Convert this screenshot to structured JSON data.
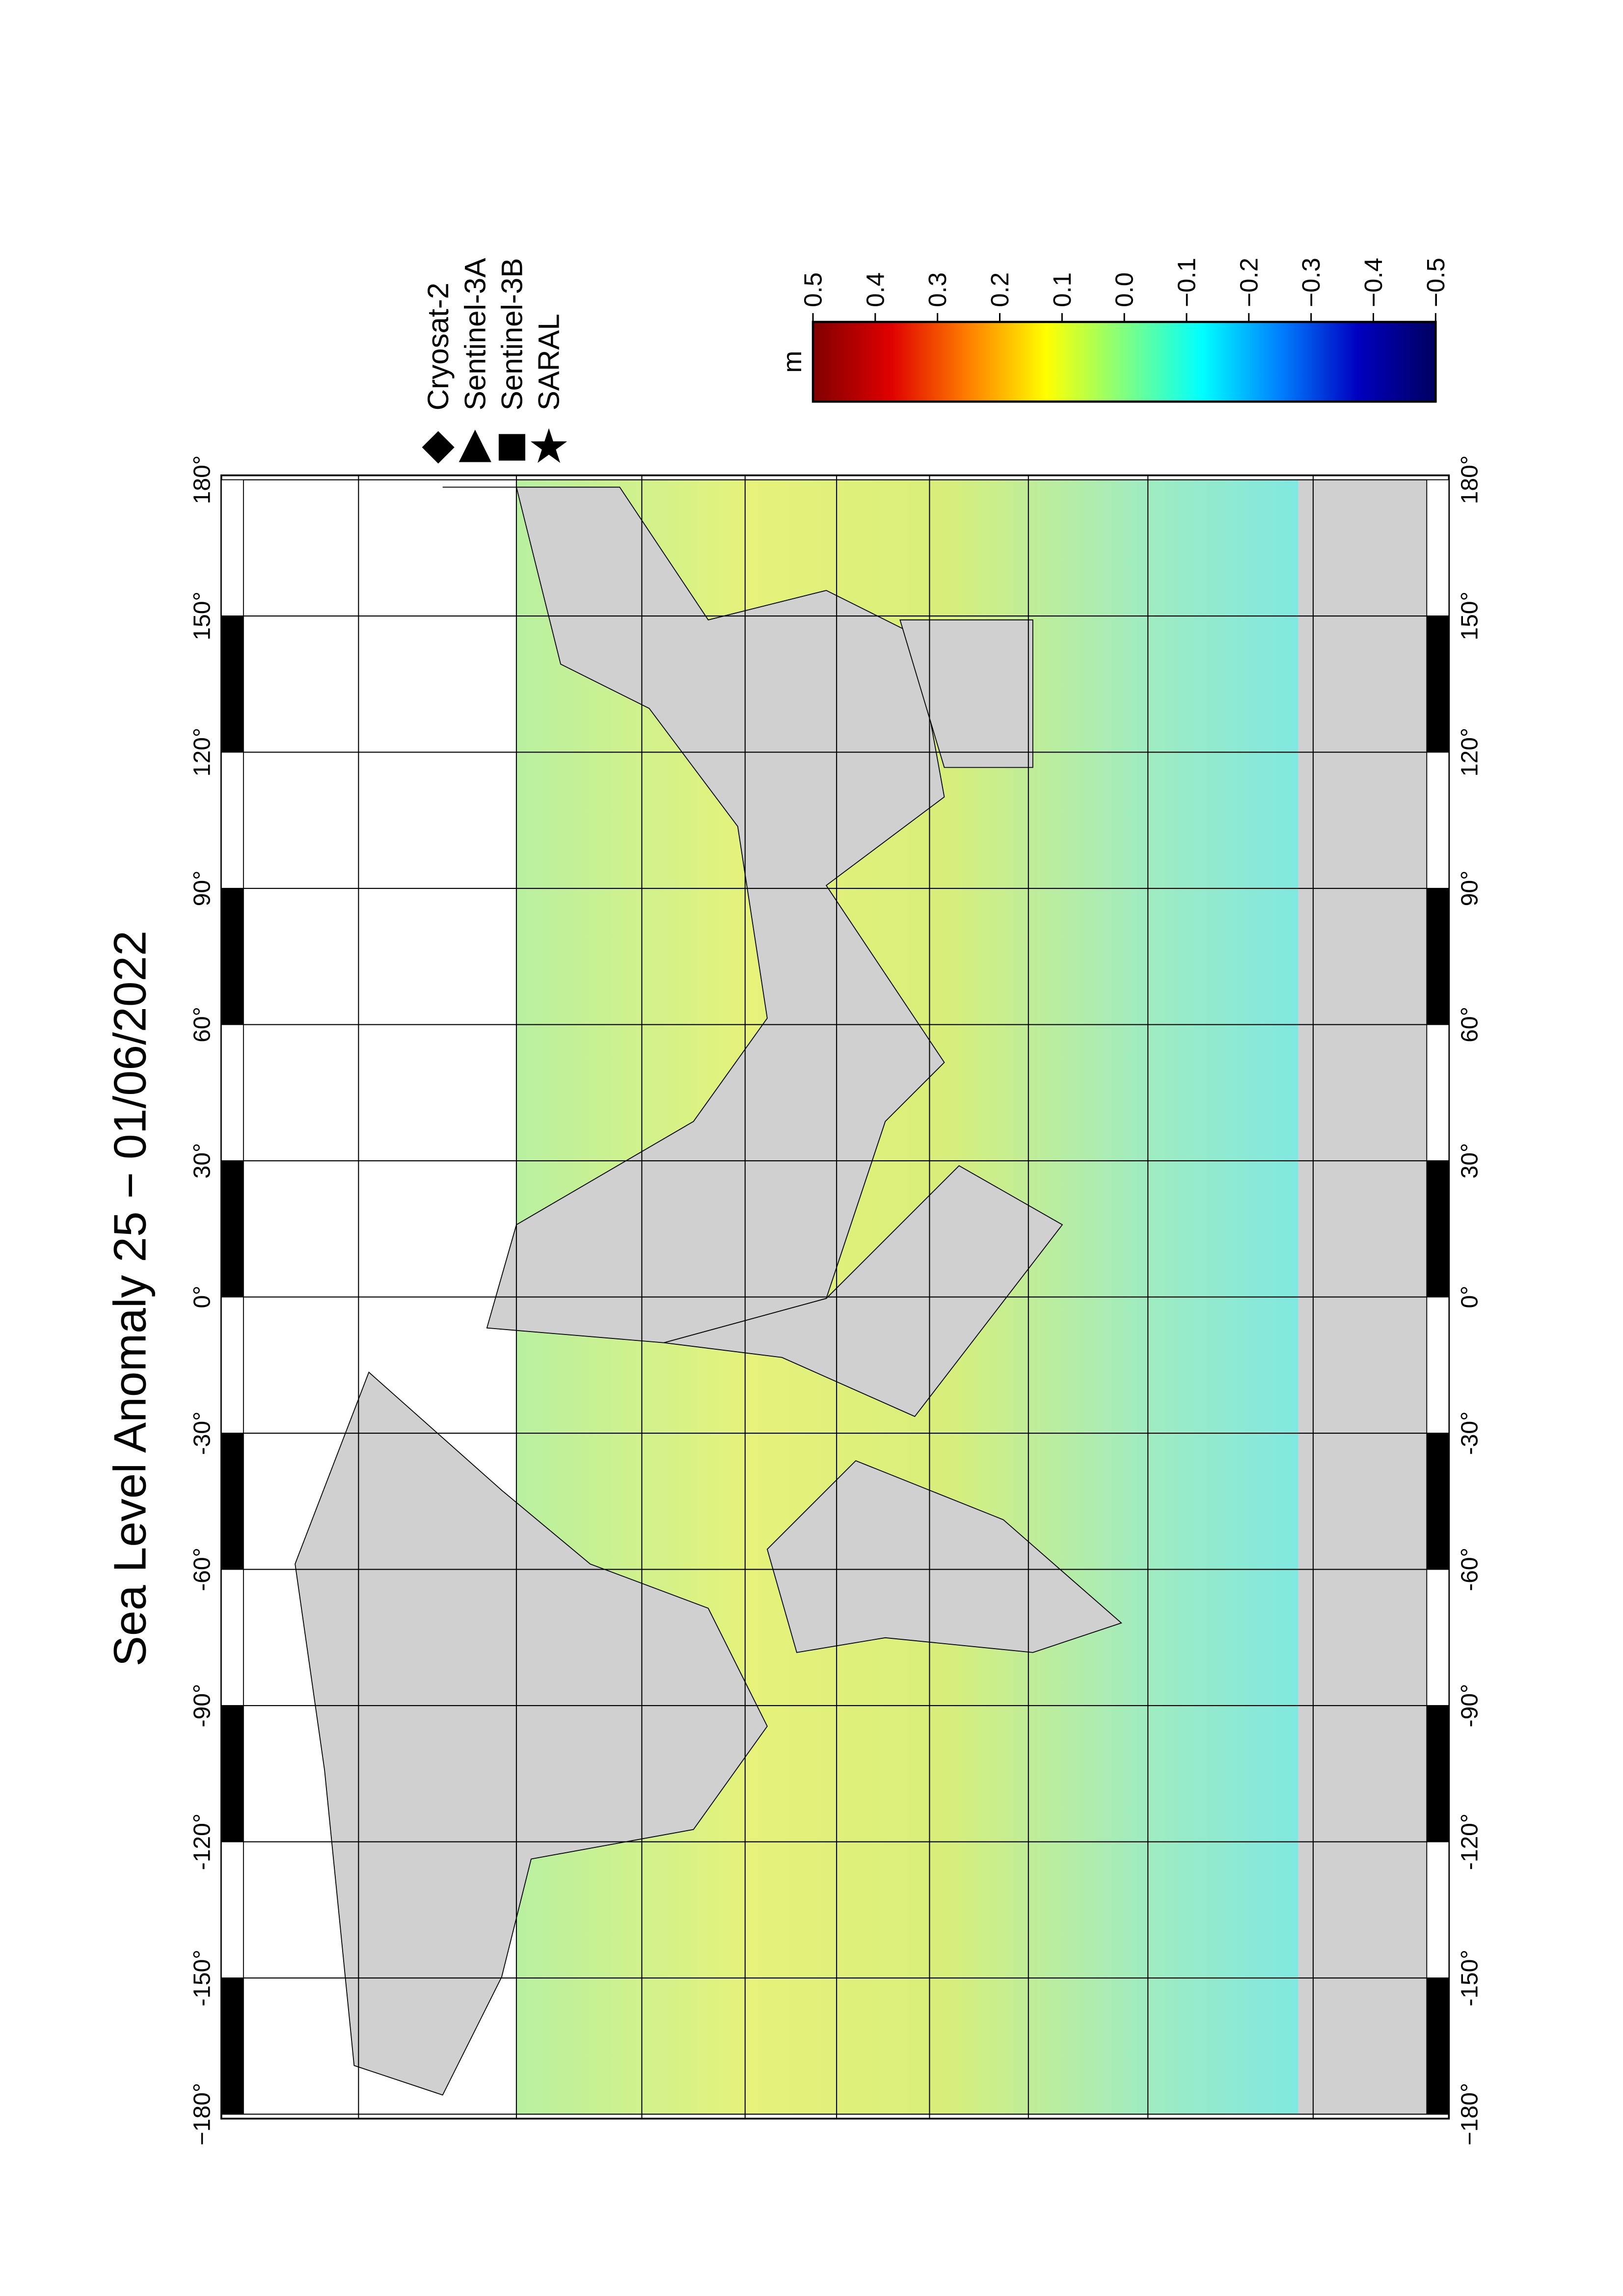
{
  "chart_data": {
    "type": "map",
    "title": "Sea Level Anomaly 25 − 01/06/2022",
    "xlim": [
      180,
      -180
    ],
    "xticks": [
      {
        "value": 180,
        "label": "180°"
      },
      {
        "value": 150,
        "label": "150°"
      },
      {
        "value": 120,
        "label": "120°"
      },
      {
        "value": 90,
        "label": "90°"
      },
      {
        "value": 60,
        "label": "60°"
      },
      {
        "value": 30,
        "label": "30°"
      },
      {
        "value": 0,
        "label": "0°"
      },
      {
        "value": -30,
        "label": "-30°"
      },
      {
        "value": -60,
        "label": "-60°"
      },
      {
        "value": -90,
        "label": "-90°"
      },
      {
        "value": -120,
        "label": "-120°"
      },
      {
        "value": -150,
        "label": "-150°"
      },
      {
        "value": -180,
        "label": "−180°"
      }
    ],
    "grid": true,
    "legend": [
      {
        "name": "Cryosat-2",
        "marker": "diamond"
      },
      {
        "name": "Sentinel-3A",
        "marker": "triangle"
      },
      {
        "name": "Sentinel-3B",
        "marker": "square"
      },
      {
        "name": "SARAL",
        "marker": "star"
      }
    ],
    "colorbar": {
      "label": "m",
      "lim": [
        0.5,
        -0.5
      ],
      "ticks": [
        0.5,
        0.4,
        0.3,
        0.2,
        0.1,
        {
          "value": 0.0,
          "label": "0.0"
        },
        {
          "value": -0.1,
          "label": "−0.1"
        },
        {
          "value": -0.2,
          "label": "−0.2"
        },
        {
          "value": -0.3,
          "label": "−0.3"
        },
        {
          "value": -0.4,
          "label": "−0.4"
        },
        {
          "value": -0.5,
          "label": "−0.5"
        }
      ],
      "colors": [
        "#800000",
        "#e00000",
        "#ff8000",
        "#ffff00",
        "#80ff80",
        "#00ffff",
        "#0080ff",
        "#0000c0",
        "#000060"
      ]
    }
  }
}
